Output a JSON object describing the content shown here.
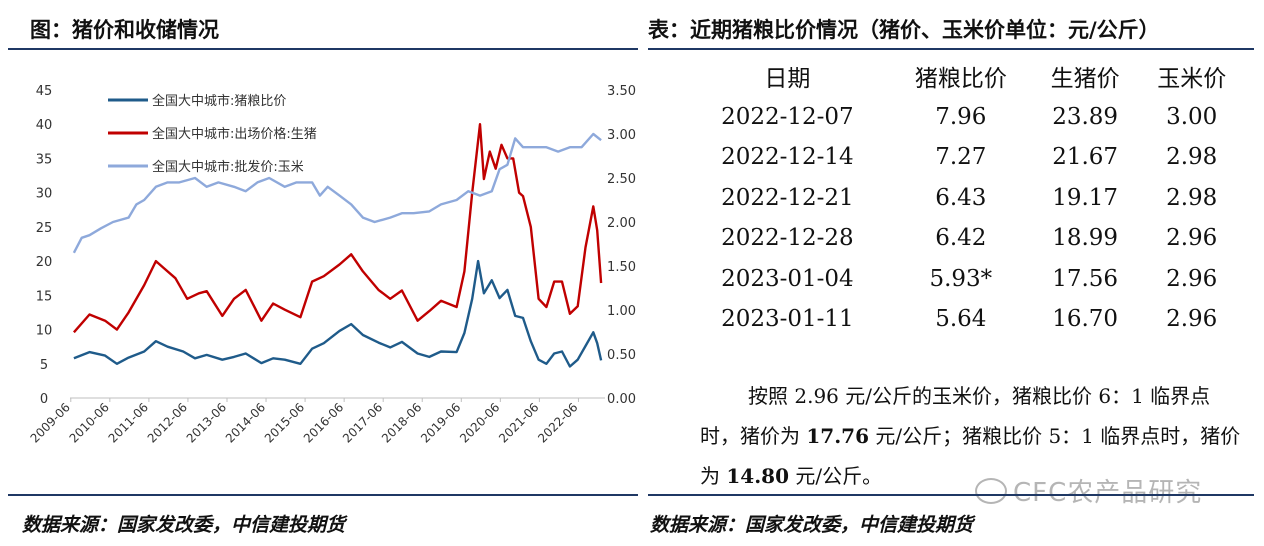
{
  "left_title": "图：猪价和收储情况",
  "right_title": "表：近期猪粮比价情况（猪价、玉米价单位：元/公斤）",
  "footer_left": "数据来源：国家发改委，中信建投期货",
  "footer_right": "数据来源：国家发改委，中信建投期货",
  "watermark": "CFC农产品研究",
  "colors": {
    "rule": "#1f3864",
    "ratio": "#1f5b8a",
    "hog": "#c00000",
    "corn": "#8ea9db"
  },
  "table": {
    "headers": [
      "日期",
      "猪粮比价",
      "生猪价",
      "玉米价"
    ],
    "rows": [
      [
        "2022-12-07",
        "7.96",
        "23.89",
        "3.00"
      ],
      [
        "2022-12-14",
        "7.27",
        "21.67",
        "2.98"
      ],
      [
        "2022-12-21",
        "6.43",
        "19.17",
        "2.98"
      ],
      [
        "2022-12-28",
        "6.42",
        "18.99",
        "2.96"
      ],
      [
        "2023-01-04",
        "5.93*",
        "17.56",
        "2.96"
      ],
      [
        "2023-01-11",
        "5.64",
        "16.70",
        "2.96"
      ]
    ]
  },
  "note": {
    "p1": "按照 2.96 元/公斤的玉米价，猪粮比价 6：1 临界点时，猪价为 ",
    "v1": "17.76",
    "p2": " 元/公斤；猪粮比价 5：1 临界点时，猪价为 ",
    "v2": "14.80",
    "p3": " 元/公斤。"
  },
  "chart_data": {
    "type": "line",
    "title": "",
    "legend_position": "top-left",
    "grid": false,
    "y_left": {
      "ticks": [
        "0",
        "5",
        "10",
        "15",
        "20",
        "25",
        "30",
        "35",
        "40",
        "45"
      ],
      "ylim": [
        0,
        45
      ]
    },
    "y_right": {
      "ticks": [
        "0.00",
        "0.50",
        "1.00",
        "1.50",
        "2.00",
        "2.50",
        "3.00",
        "3.50"
      ],
      "ylim": [
        0,
        3.5
      ]
    },
    "x_ticks": [
      "2009-06",
      "2010-06",
      "2011-06",
      "2012-06",
      "2013-06",
      "2014-06",
      "2015-06",
      "2016-06",
      "2017-06",
      "2018-06",
      "2019-06",
      "2020-06",
      "2021-06",
      "2022-06"
    ],
    "x_range": [
      2009.4,
      2023.1
    ],
    "series": [
      {
        "name": "全国大中城市:猪粮比价",
        "axis": "left",
        "color": "#1f5b8a",
        "x": [
          2009.5,
          2009.9,
          2010.3,
          2010.6,
          2010.9,
          2011.3,
          2011.6,
          2011.9,
          2012.3,
          2012.6,
          2012.9,
          2013.3,
          2013.6,
          2013.9,
          2014.3,
          2014.6,
          2014.9,
          2015.3,
          2015.6,
          2015.9,
          2016.3,
          2016.6,
          2016.9,
          2017.3,
          2017.6,
          2017.9,
          2018.3,
          2018.6,
          2018.9,
          2019.3,
          2019.5,
          2019.7,
          2019.85,
          2020.0,
          2020.2,
          2020.4,
          2020.6,
          2020.8,
          2021.0,
          2021.2,
          2021.4,
          2021.6,
          2021.8,
          2022.0,
          2022.2,
          2022.4,
          2022.6,
          2022.8,
          2022.9,
          2023.0
        ],
        "y": [
          5.8,
          6.7,
          6.2,
          5.0,
          5.9,
          6.8,
          8.3,
          7.5,
          6.8,
          5.8,
          6.3,
          5.6,
          6.0,
          6.5,
          5.1,
          5.8,
          5.6,
          5.0,
          7.2,
          8.0,
          9.8,
          10.8,
          9.2,
          8.1,
          7.4,
          8.2,
          6.5,
          6.0,
          6.8,
          6.7,
          9.5,
          14.5,
          20.0,
          15.3,
          17.2,
          14.6,
          15.8,
          12.0,
          11.7,
          8.3,
          5.6,
          5.0,
          6.5,
          6.8,
          4.6,
          5.6,
          7.6,
          9.6,
          8.0,
          5.5
        ]
      },
      {
        "name": "全国大中城市:出场价格:生猪",
        "axis": "left",
        "color": "#c00000",
        "x": [
          2009.5,
          2009.9,
          2010.3,
          2010.6,
          2010.9,
          2011.3,
          2011.6,
          2011.8,
          2012.1,
          2012.4,
          2012.7,
          2012.9,
          2013.3,
          2013.6,
          2013.9,
          2014.3,
          2014.6,
          2014.9,
          2015.3,
          2015.6,
          2015.9,
          2016.3,
          2016.6,
          2016.9,
          2017.3,
          2017.6,
          2017.9,
          2018.3,
          2018.6,
          2018.9,
          2019.3,
          2019.5,
          2019.7,
          2019.9,
          2020.0,
          2020.15,
          2020.3,
          2020.45,
          2020.6,
          2020.75,
          2020.9,
          2021.0,
          2021.2,
          2021.4,
          2021.6,
          2021.8,
          2022.0,
          2022.2,
          2022.4,
          2022.6,
          2022.8,
          2022.9,
          2023.0
        ],
        "y": [
          9.6,
          12.2,
          11.3,
          10.0,
          12.5,
          16.5,
          20.0,
          19.0,
          17.5,
          14.5,
          15.3,
          15.6,
          12.0,
          14.5,
          15.8,
          11.3,
          13.8,
          12.9,
          11.8,
          17.0,
          17.8,
          19.5,
          21.0,
          18.5,
          15.8,
          14.5,
          15.7,
          11.3,
          12.7,
          14.2,
          13.3,
          18.5,
          30.0,
          40.0,
          32.0,
          36.0,
          33.5,
          37.0,
          35.0,
          35.0,
          30.0,
          29.5,
          25.0,
          14.5,
          13.3,
          17.0,
          17.0,
          12.3,
          13.4,
          22.0,
          28.0,
          24.5,
          16.8
        ]
      },
      {
        "name": "全国大中城市:批发价:玉米",
        "axis": "right",
        "color": "#8ea9db",
        "x": [
          2009.5,
          2009.7,
          2009.9,
          2010.2,
          2010.5,
          2010.9,
          2011.1,
          2011.3,
          2011.6,
          2011.9,
          2012.2,
          2012.6,
          2012.9,
          2013.2,
          2013.6,
          2013.9,
          2014.2,
          2014.5,
          2014.9,
          2015.2,
          2015.6,
          2015.8,
          2016.0,
          2016.3,
          2016.6,
          2016.9,
          2017.2,
          2017.6,
          2017.9,
          2018.2,
          2018.6,
          2018.9,
          2019.3,
          2019.6,
          2019.9,
          2020.2,
          2020.4,
          2020.6,
          2020.8,
          2021.0,
          2021.3,
          2021.6,
          2021.9,
          2022.2,
          2022.5,
          2022.8,
          2023.0
        ],
        "y": [
          1.65,
          1.82,
          1.85,
          1.93,
          2.0,
          2.05,
          2.2,
          2.25,
          2.4,
          2.45,
          2.45,
          2.5,
          2.4,
          2.45,
          2.4,
          2.35,
          2.45,
          2.5,
          2.4,
          2.45,
          2.45,
          2.3,
          2.4,
          2.3,
          2.2,
          2.05,
          2.0,
          2.05,
          2.1,
          2.1,
          2.12,
          2.2,
          2.25,
          2.35,
          2.3,
          2.35,
          2.6,
          2.65,
          2.95,
          2.85,
          2.85,
          2.85,
          2.8,
          2.85,
          2.85,
          3.0,
          2.93
        ]
      }
    ]
  }
}
